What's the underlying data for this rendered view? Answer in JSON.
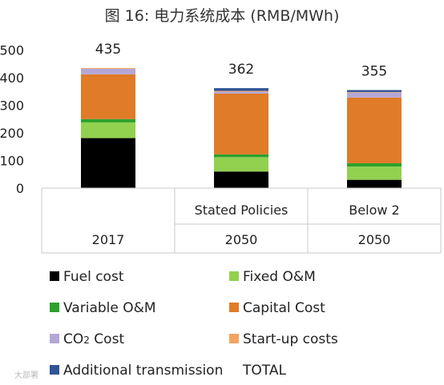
{
  "chart_data": {
    "type": "bar",
    "stacked": true,
    "title": "图 16: 电力系统成本 (RMB/MWh)",
    "categories": [
      {
        "scenario": "",
        "year": "2017"
      },
      {
        "scenario": "Stated Policies",
        "year": "2050"
      },
      {
        "scenario": "Below 2",
        "year": "2050"
      }
    ],
    "yticks": [
      0,
      100,
      200,
      300,
      400,
      500
    ],
    "ylim": [
      0,
      500
    ],
    "series": [
      {
        "name": "Fuel cost",
        "color": "#000000",
        "values": [
          181,
          60,
          30
        ]
      },
      {
        "name": "Fixed O&M",
        "color": "#92d050",
        "values": [
          57,
          52,
          48
        ]
      },
      {
        "name": "Variable O&M",
        "color": "#2ca02c",
        "values": [
          12,
          10,
          12
        ]
      },
      {
        "name": "Capital Cost",
        "color": "#e07b28",
        "values": [
          162,
          220,
          238
        ]
      },
      {
        "name": "CO2 Cost",
        "color": "#b4a7d6",
        "values": [
          20,
          7,
          18
        ]
      },
      {
        "name": "Start-up costs",
        "color": "#f4a460",
        "values": [
          3,
          3,
          2
        ]
      },
      {
        "name": "Additional transmission",
        "color": "#2f5597",
        "values": [
          0,
          10,
          7
        ]
      }
    ],
    "totals": [
      435,
      362,
      355
    ],
    "totals_label": "TOTAL",
    "legend_position": "bottom",
    "grid": false
  },
  "watermark": "大部署"
}
